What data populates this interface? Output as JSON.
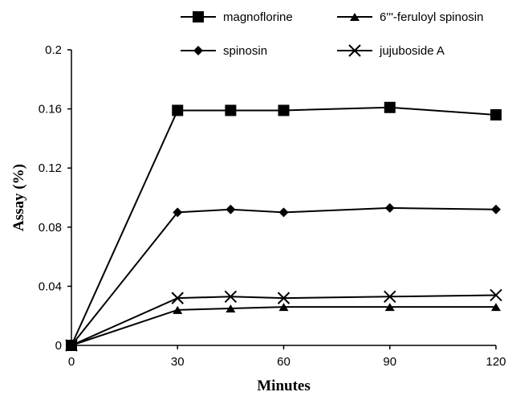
{
  "chart_data": {
    "type": "line",
    "title": "",
    "xlabel": "Minutes",
    "ylabel": "Assay (%)",
    "xlim": [
      0,
      120
    ],
    "ylim": [
      0,
      0.2
    ],
    "x_ticks": [
      {
        "value": 0,
        "label": "0"
      },
      {
        "value": 30,
        "label": "30"
      },
      {
        "value": 60,
        "label": "60"
      },
      {
        "value": 90,
        "label": "90"
      },
      {
        "value": 120,
        "label": "120"
      }
    ],
    "y_ticks": [
      {
        "value": 0,
        "label": "0"
      },
      {
        "value": 0.04,
        "label": "0.04"
      },
      {
        "value": 0.08,
        "label": "0.08"
      },
      {
        "value": 0.12,
        "label": "0.12"
      },
      {
        "value": 0.16,
        "label": "0.16"
      },
      {
        "value": 0.2,
        "label": "0.2"
      }
    ],
    "grid": false,
    "legend_position": "top-right",
    "series": [
      {
        "name": "magnoflorine",
        "marker": "square",
        "x": [
          0,
          30,
          45,
          60,
          90,
          120
        ],
        "y": [
          0,
          0.159,
          0.159,
          0.159,
          0.161,
          0.156
        ]
      },
      {
        "name": "6'''-feruloyl spinosin",
        "marker": "triangle",
        "x": [
          0,
          30,
          45,
          60,
          90,
          120
        ],
        "y": [
          0,
          0.024,
          0.025,
          0.026,
          0.026,
          0.026
        ]
      },
      {
        "name": "spinosin",
        "marker": "diamond",
        "x": [
          0,
          30,
          45,
          60,
          90,
          120
        ],
        "y": [
          0,
          0.09,
          0.092,
          0.09,
          0.093,
          0.092
        ]
      },
      {
        "name": "jujuboside A",
        "marker": "x",
        "x": [
          0,
          30,
          45,
          60,
          90,
          120
        ],
        "y": [
          0,
          0.032,
          0.033,
          0.032,
          0.033,
          0.034
        ]
      }
    ]
  }
}
